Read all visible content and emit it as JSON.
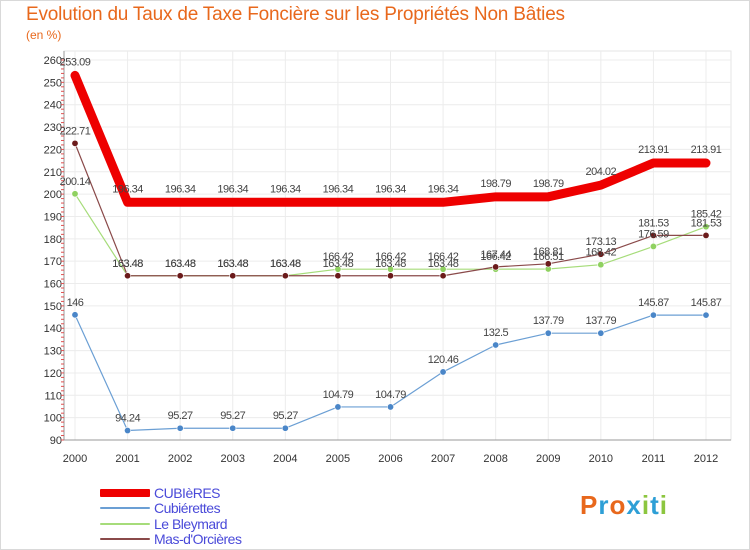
{
  "title": "Evolution du Taux de Taxe Foncière sur les Propriétés Non Bâties",
  "subtitle": "(en %)",
  "logo": {
    "chars": [
      "P",
      "r",
      "o",
      "x",
      "i",
      "t",
      "i"
    ],
    "colors": [
      "#e8681c",
      "#2e9fd6",
      "#e8681c",
      "#2e9fd6",
      "#8cc63f",
      "#2e9fd6",
      "#8cc63f"
    ]
  },
  "chart_data": {
    "type": "line",
    "title": "Evolution du Taux de Taxe Foncière sur les Propriétés Non Bâties",
    "ylabel": "(en %)",
    "xlabel": "",
    "ylim": [
      90,
      260
    ],
    "yticks": [
      90,
      100,
      110,
      120,
      130,
      140,
      150,
      160,
      170,
      180,
      190,
      200,
      210,
      220,
      230,
      240,
      250,
      260
    ],
    "x": [
      "2000",
      "2001",
      "2002",
      "2003",
      "2004",
      "2005",
      "2006",
      "2007",
      "2008",
      "2009",
      "2010",
      "2011",
      "2012"
    ],
    "series": [
      {
        "name": "CUBIèRES",
        "color": "#ee0000",
        "width": 9,
        "markers": false,
        "values": [
          253.09,
          196.34,
          196.34,
          196.34,
          196.34,
          196.34,
          196.34,
          196.34,
          198.79,
          198.79,
          204.02,
          213.91,
          213.91
        ],
        "labels": [
          "253.09",
          "196.34",
          "196.34",
          "196.34",
          "196.34",
          "196.34",
          "196.34",
          "196.34",
          "198.79",
          "198.79",
          "204.02",
          "213.91",
          "213.91"
        ]
      },
      {
        "name": "Cubiérettes",
        "color": "#6b9fd4",
        "width": 1.2,
        "markers": true,
        "marker_fill": "#4a86c8",
        "values": [
          146,
          94.24,
          95.27,
          95.27,
          95.27,
          104.79,
          104.79,
          120.46,
          132.5,
          137.79,
          137.79,
          145.87,
          145.87
        ],
        "labels": [
          "146",
          "94.24",
          "95.27",
          "95.27",
          "95.27",
          "104.79",
          "104.79",
          "120.46",
          "132.5",
          "137.79",
          "137.79",
          "145.87",
          "145.87"
        ]
      },
      {
        "name": "Le Bleymard",
        "color": "#a6dc7a",
        "width": 1.2,
        "markers": true,
        "marker_fill": "#8fd160",
        "values": [
          200.14,
          163.48,
          163.48,
          163.48,
          163.48,
          166.42,
          166.42,
          166.42,
          166.42,
          166.51,
          168.42,
          176.59,
          185.42
        ],
        "labels": [
          "200.14",
          "163.48",
          "163.48",
          "163.48",
          "163.48",
          "166.42",
          "166.42",
          "166.42",
          "166.42",
          "166.51",
          "168.42",
          "176.59",
          "185.42"
        ]
      },
      {
        "name": "Mas-d'Orcières",
        "color": "#8a4a4a",
        "width": 1.2,
        "markers": true,
        "marker_fill": "#6b1a1a",
        "values": [
          222.71,
          163.48,
          163.48,
          163.48,
          163.48,
          163.48,
          163.48,
          163.48,
          167.44,
          168.81,
          173.13,
          181.53,
          181.53
        ],
        "labels": [
          "222.71",
          "163.48",
          "163.48",
          "163.48",
          "163.48",
          "163.48",
          "163.48",
          "163.48",
          "167.44",
          "168.81",
          "173.13",
          "181.53",
          "181.53"
        ]
      }
    ]
  }
}
